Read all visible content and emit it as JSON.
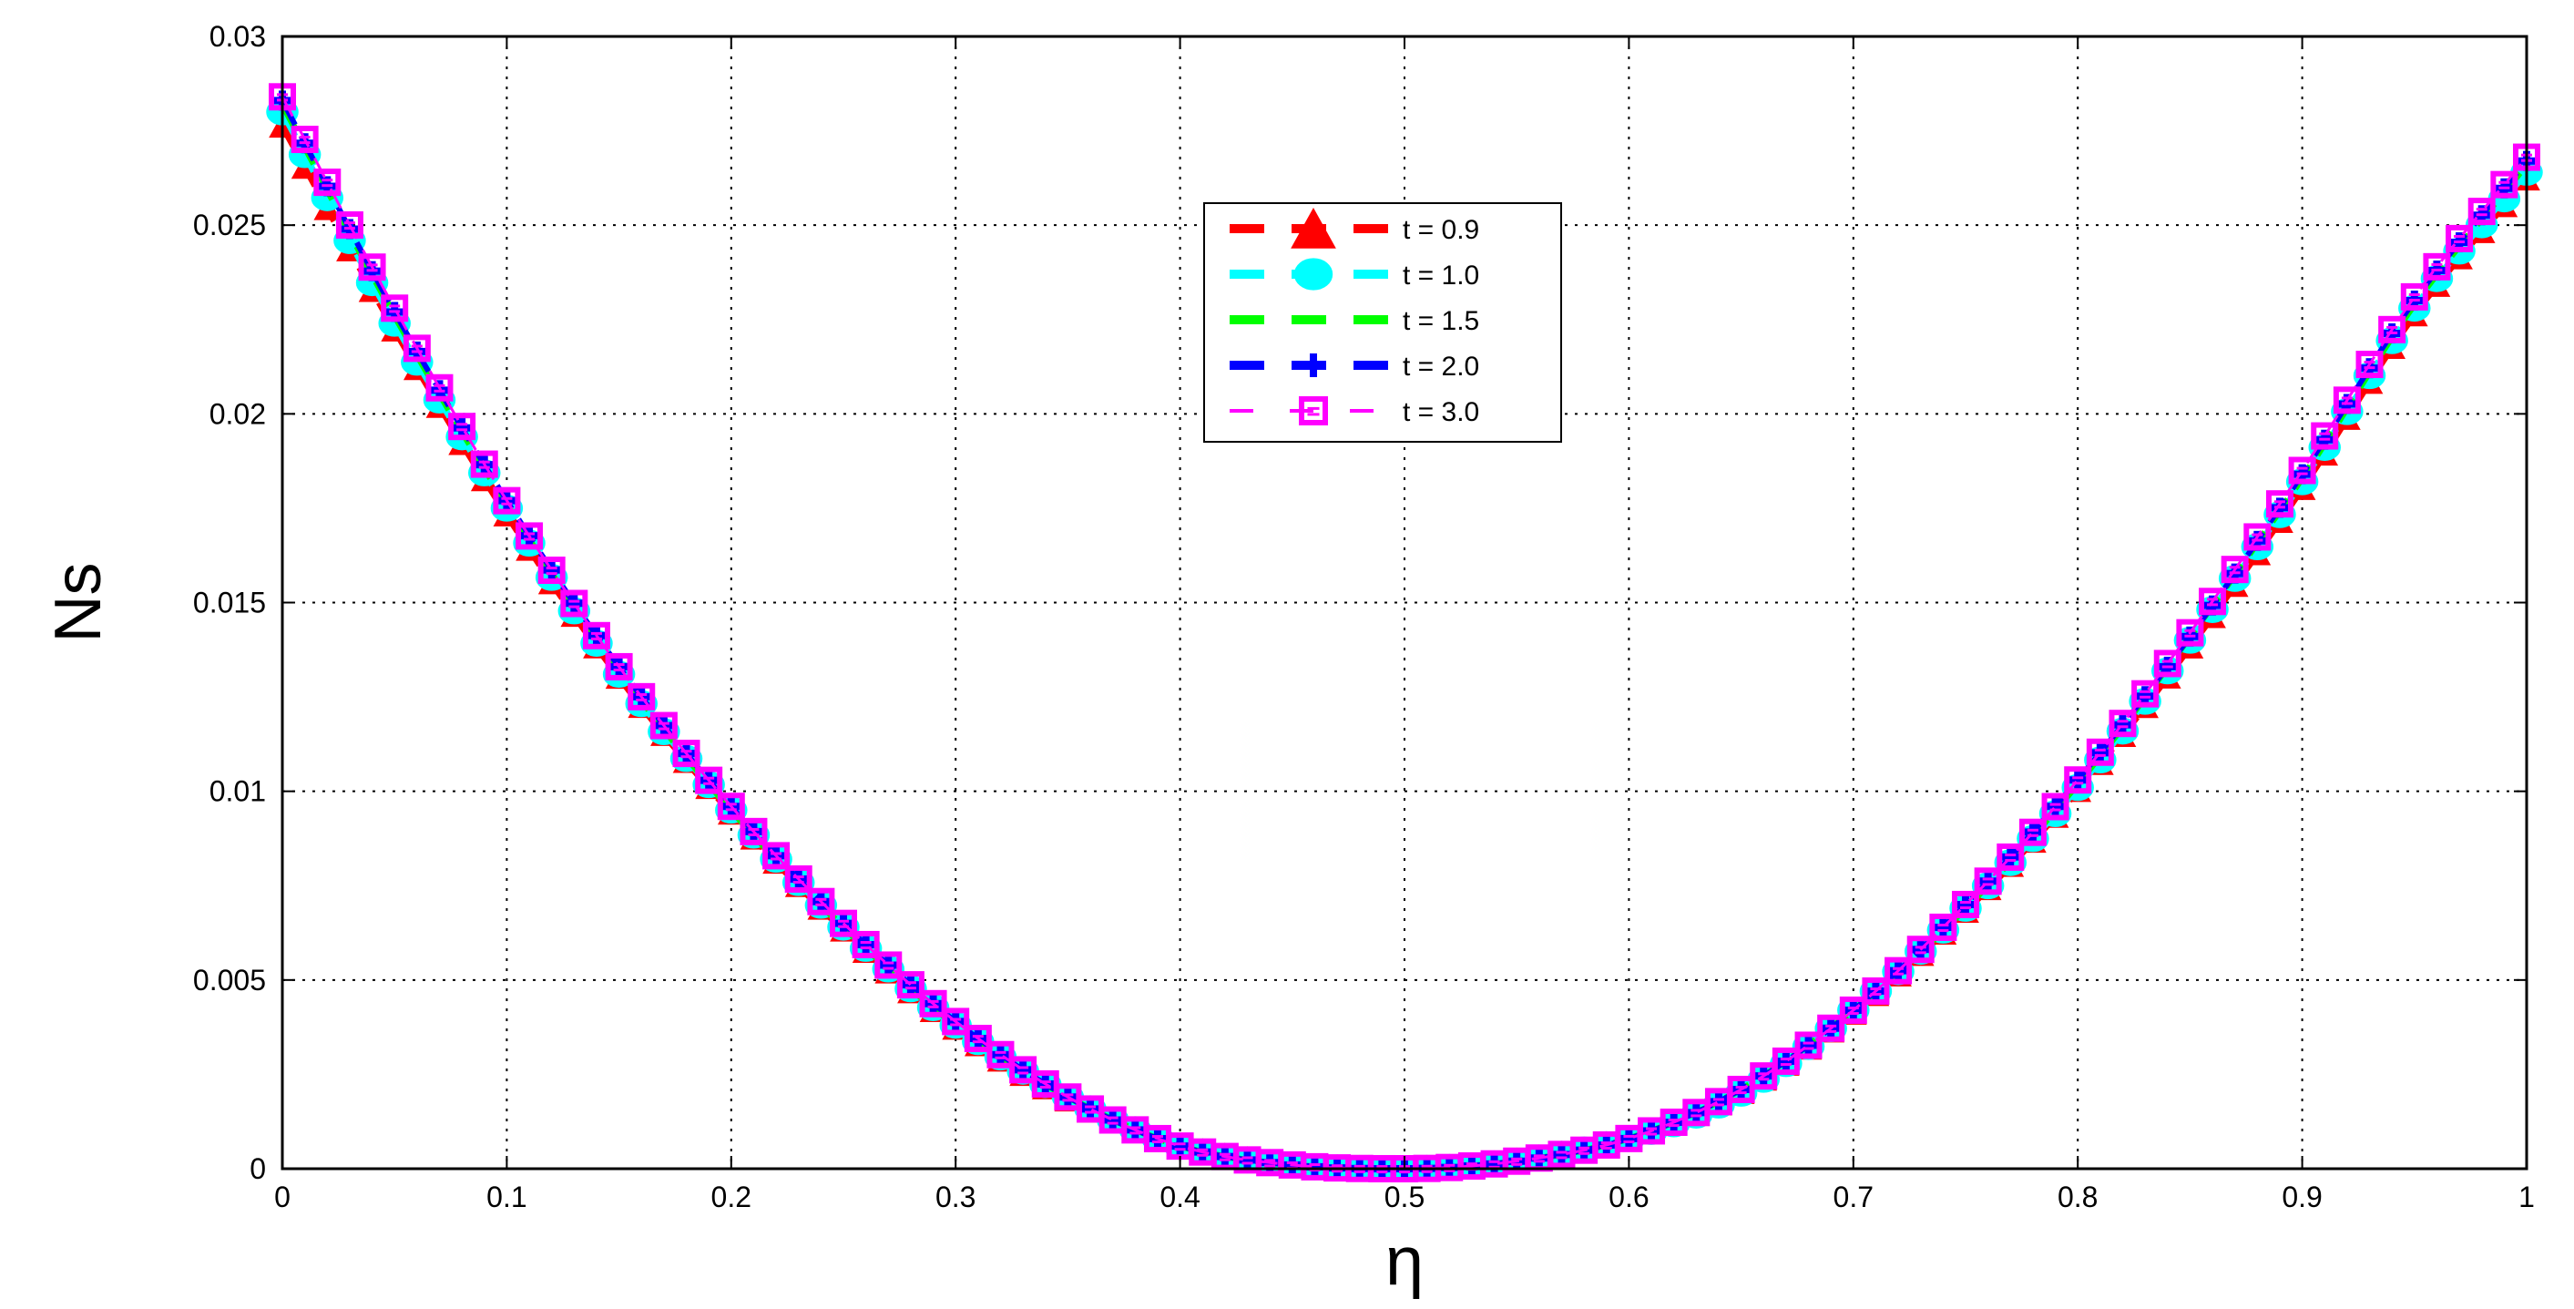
{
  "chart_data": {
    "type": "line",
    "title": "",
    "xlabel": "η",
    "ylabel": "Ns",
    "xlim": [
      0,
      1
    ],
    "ylim": [
      0,
      0.03
    ],
    "x_ticks": [
      "0",
      "0.1",
      "0.2",
      "0.3",
      "0.4",
      "0.5",
      "0.6",
      "0.7",
      "0.8",
      "0.9",
      "1"
    ],
    "y_ticks": [
      "0",
      "0.005",
      "0.01",
      "0.015",
      "0.02",
      "0.025",
      "0.03"
    ],
    "grid": true,
    "legend_position": "top-center",
    "x": [
      0,
      0.05,
      0.1,
      0.15,
      0.2,
      0.25,
      0.3,
      0.35,
      0.4,
      0.45,
      0.5,
      0.55,
      0.6,
      0.65,
      0.7,
      0.75,
      0.8,
      0.85,
      0.9,
      0.95,
      1
    ],
    "series": [
      {
        "name": "t = 0.9",
        "color": "#ff0000",
        "marker": "triangle",
        "values": [
          0.0276,
          0.0222,
          0.0173,
          0.013,
          0.0094,
          0.0063,
          0.0037,
          0.0018,
          0.0006,
          0.0001,
          0.0,
          0.0002,
          0.0008,
          0.002,
          0.0041,
          0.0068,
          0.01,
          0.0138,
          0.018,
          0.0226,
          0.0262
        ]
      },
      {
        "name": "t = 1.0",
        "color": "#00ffff",
        "marker": "circle",
        "values": [
          0.028,
          0.0224,
          0.0175,
          0.0131,
          0.0095,
          0.0064,
          0.0038,
          0.0019,
          0.0006,
          0.0001,
          0.0,
          0.0002,
          0.0008,
          0.002,
          0.0042,
          0.0069,
          0.0101,
          0.014,
          0.0182,
          0.0228,
          0.0264
        ]
      },
      {
        "name": "t = 1.5",
        "color": "#00ff00",
        "marker": "none",
        "values": [
          0.0282,
          0.0226,
          0.0176,
          0.0132,
          0.0095,
          0.0064,
          0.0038,
          0.0019,
          0.0006,
          0.0001,
          0.0,
          0.0002,
          0.0008,
          0.0021,
          0.0042,
          0.0069,
          0.0102,
          0.0141,
          0.0183,
          0.0229,
          0.0266
        ]
      },
      {
        "name": "t = 2.0",
        "color": "#0000ff",
        "marker": "plus",
        "values": [
          0.0283,
          0.0227,
          0.0177,
          0.0133,
          0.0096,
          0.0065,
          0.0039,
          0.0019,
          0.0006,
          0.0001,
          0.0,
          0.0002,
          0.0008,
          0.0021,
          0.0042,
          0.007,
          0.0103,
          0.0141,
          0.0184,
          0.023,
          0.0267
        ]
      },
      {
        "name": "t = 3.0",
        "color": "#ff00ff",
        "marker": "square",
        "values": [
          0.0284,
          0.0228,
          0.0177,
          0.0133,
          0.0096,
          0.0065,
          0.0039,
          0.0019,
          0.0006,
          0.0001,
          0.0,
          0.0002,
          0.0008,
          0.0021,
          0.0042,
          0.007,
          0.0103,
          0.0142,
          0.0185,
          0.0231,
          0.0268
        ]
      }
    ]
  }
}
